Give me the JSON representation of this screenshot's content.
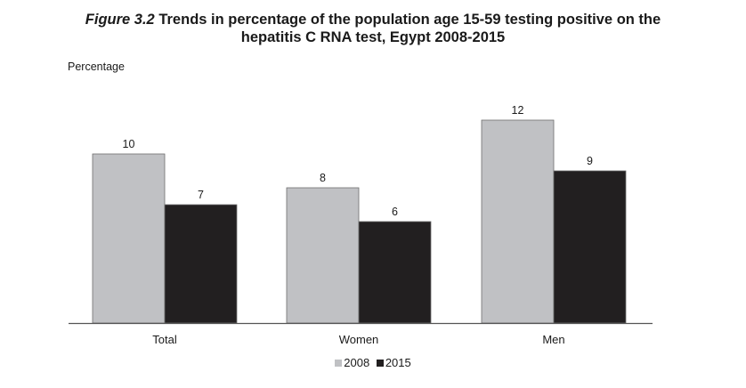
{
  "figure_label": "Figure 3.2",
  "title_line1": "Trends in percentage of the population age 15-59 testing positive on the",
  "title_line2": "hepatitis C RNA test, Egypt 2008-2015",
  "chart_data": {
    "type": "bar",
    "ylabel": "Percentage",
    "xlabel": "",
    "categories": [
      "Total",
      "Women",
      "Men"
    ],
    "series": [
      {
        "name": "2008",
        "values": [
          10,
          8,
          12
        ],
        "color": "#c0c1c4"
      },
      {
        "name": "2015",
        "values": [
          7,
          6,
          9
        ],
        "color": "#221f20"
      }
    ],
    "ylim": [
      0,
      12.4
    ],
    "grid": false,
    "legend": "bottom-center",
    "data_labels": true
  }
}
